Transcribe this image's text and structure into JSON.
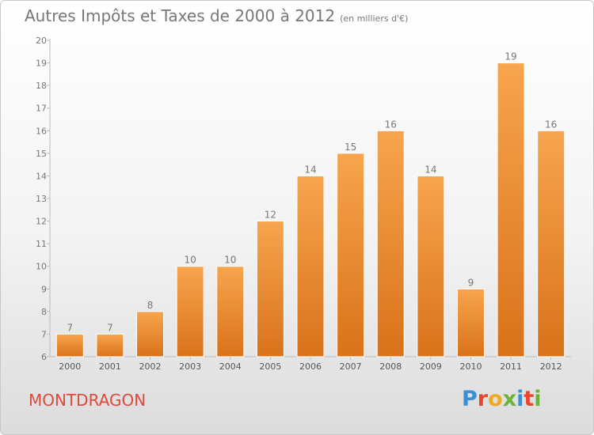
{
  "header": {
    "title": "Autres Impôts et Taxes de 2000 à 2012",
    "unit": "(en milliers d'€)"
  },
  "footer": {
    "town": "MONTDRAGON"
  },
  "logo": {
    "text": "Proxiti",
    "colors": [
      "#3b8fd6",
      "#e8442e",
      "#f0a820",
      "#6bb33a",
      "#3b8fd6",
      "#e8442e",
      "#6bb33a"
    ]
  },
  "colors": {
    "bar_light": "#f7a54e",
    "bar_dark": "#d9721a",
    "text": "#777777",
    "town": "#e0483a"
  },
  "chart_data": {
    "type": "bar",
    "title": "Autres Impôts et Taxes de 2000 à 2012",
    "subtitle": "(en milliers d'€)",
    "categories": [
      "2000",
      "2001",
      "2002",
      "2003",
      "2004",
      "2005",
      "2006",
      "2007",
      "2008",
      "2009",
      "2010",
      "2011",
      "2012"
    ],
    "values": [
      7,
      7,
      8,
      10,
      10,
      12,
      14,
      15,
      16,
      14,
      9,
      19,
      16
    ],
    "ylim": [
      6,
      20
    ],
    "yticks": [
      6,
      7,
      8,
      9,
      10,
      11,
      12,
      13,
      14,
      15,
      16,
      17,
      18,
      19,
      20
    ],
    "grid": false,
    "data_labels": true
  }
}
